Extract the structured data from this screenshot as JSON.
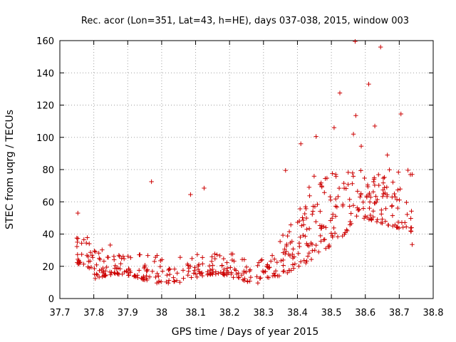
{
  "chart_data": {
    "type": "scatter",
    "title": "Rec. acor (Lon=351, Lat=43, h=HE), days 037-038, 2015, window 003",
    "xlabel": "GPS time / Days of year 2015",
    "ylabel": "STEC from uqrg / TECUs",
    "xlim": [
      37.7,
      38.8
    ],
    "ylim": [
      0,
      160
    ],
    "xticks": [
      37.7,
      37.8,
      37.9,
      38.0,
      38.1,
      38.2,
      38.3,
      38.4,
      38.5,
      38.6,
      38.7,
      38.8
    ],
    "xtick_labels": [
      "37.7",
      "37.8",
      "37.9",
      "38",
      "38.1",
      "38.2",
      "38.3",
      "38.4",
      "38.5",
      "38.6",
      "38.7",
      "38.8"
    ],
    "yticks": [
      0,
      20,
      40,
      60,
      80,
      100,
      120,
      140,
      160
    ],
    "ytick_labels": [
      "0",
      "20",
      "40",
      "60",
      "80",
      "100",
      "120",
      "140",
      "160"
    ],
    "grid": true,
    "marker": "+",
    "color": "#cc0000",
    "outliers": [
      {
        "x": 37.753,
        "y": 53.0
      },
      {
        "x": 37.97,
        "y": 72.5
      },
      {
        "x": 38.085,
        "y": 64.5
      },
      {
        "x": 38.125,
        "y": 68.5
      },
      {
        "x": 38.41,
        "y": 96.0
      },
      {
        "x": 38.455,
        "y": 100.5
      },
      {
        "x": 38.508,
        "y": 106.0
      },
      {
        "x": 38.525,
        "y": 127.5
      },
      {
        "x": 38.565,
        "y": 102.0
      },
      {
        "x": 38.572,
        "y": 113.5
      },
      {
        "x": 38.57,
        "y": 159.5
      },
      {
        "x": 38.645,
        "y": 156.0
      },
      {
        "x": 38.61,
        "y": 133.0
      },
      {
        "x": 38.628,
        "y": 107.0
      },
      {
        "x": 38.705,
        "y": 114.5
      },
      {
        "x": 38.588,
        "y": 94.5
      },
      {
        "x": 38.665,
        "y": 89.0
      },
      {
        "x": 38.738,
        "y": 77.0
      },
      {
        "x": 38.738,
        "y": 33.5
      },
      {
        "x": 38.365,
        "y": 79.5
      }
    ]
  }
}
